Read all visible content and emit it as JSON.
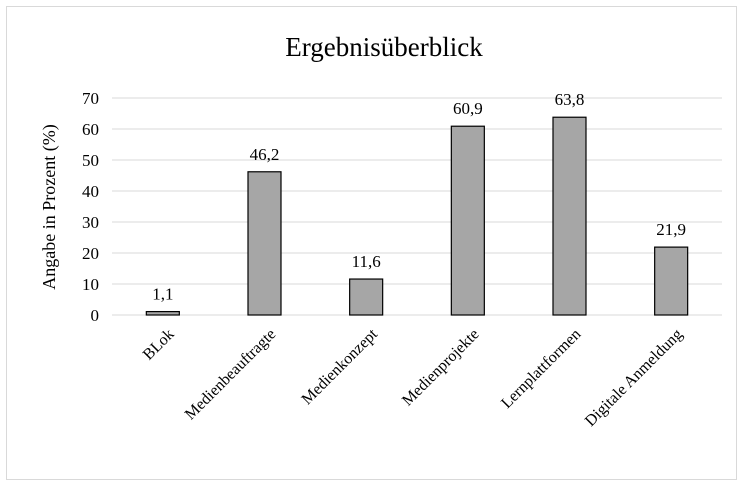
{
  "chart_data": {
    "type": "bar",
    "title": "Ergebnisüberblick",
    "xlabel": "",
    "ylabel": "Angabe in Prozent (%)",
    "ylim": [
      0,
      70
    ],
    "yticks": [
      "0",
      "10",
      "20",
      "30",
      "40",
      "50",
      "60",
      "70"
    ],
    "categories": [
      "BLok",
      "Medienbeauftragte",
      "Medienkonzept",
      "Medienprojekte",
      "Lernplattformen",
      "Digitale Anmeldung"
    ],
    "values": [
      1.1,
      46.2,
      11.6,
      60.9,
      63.8,
      21.9
    ],
    "data_labels": [
      "1,1",
      "46,2",
      "11,6",
      "60,9",
      "63,8",
      "21,9"
    ],
    "grid": true,
    "bar_color": "#a6a6a6"
  }
}
